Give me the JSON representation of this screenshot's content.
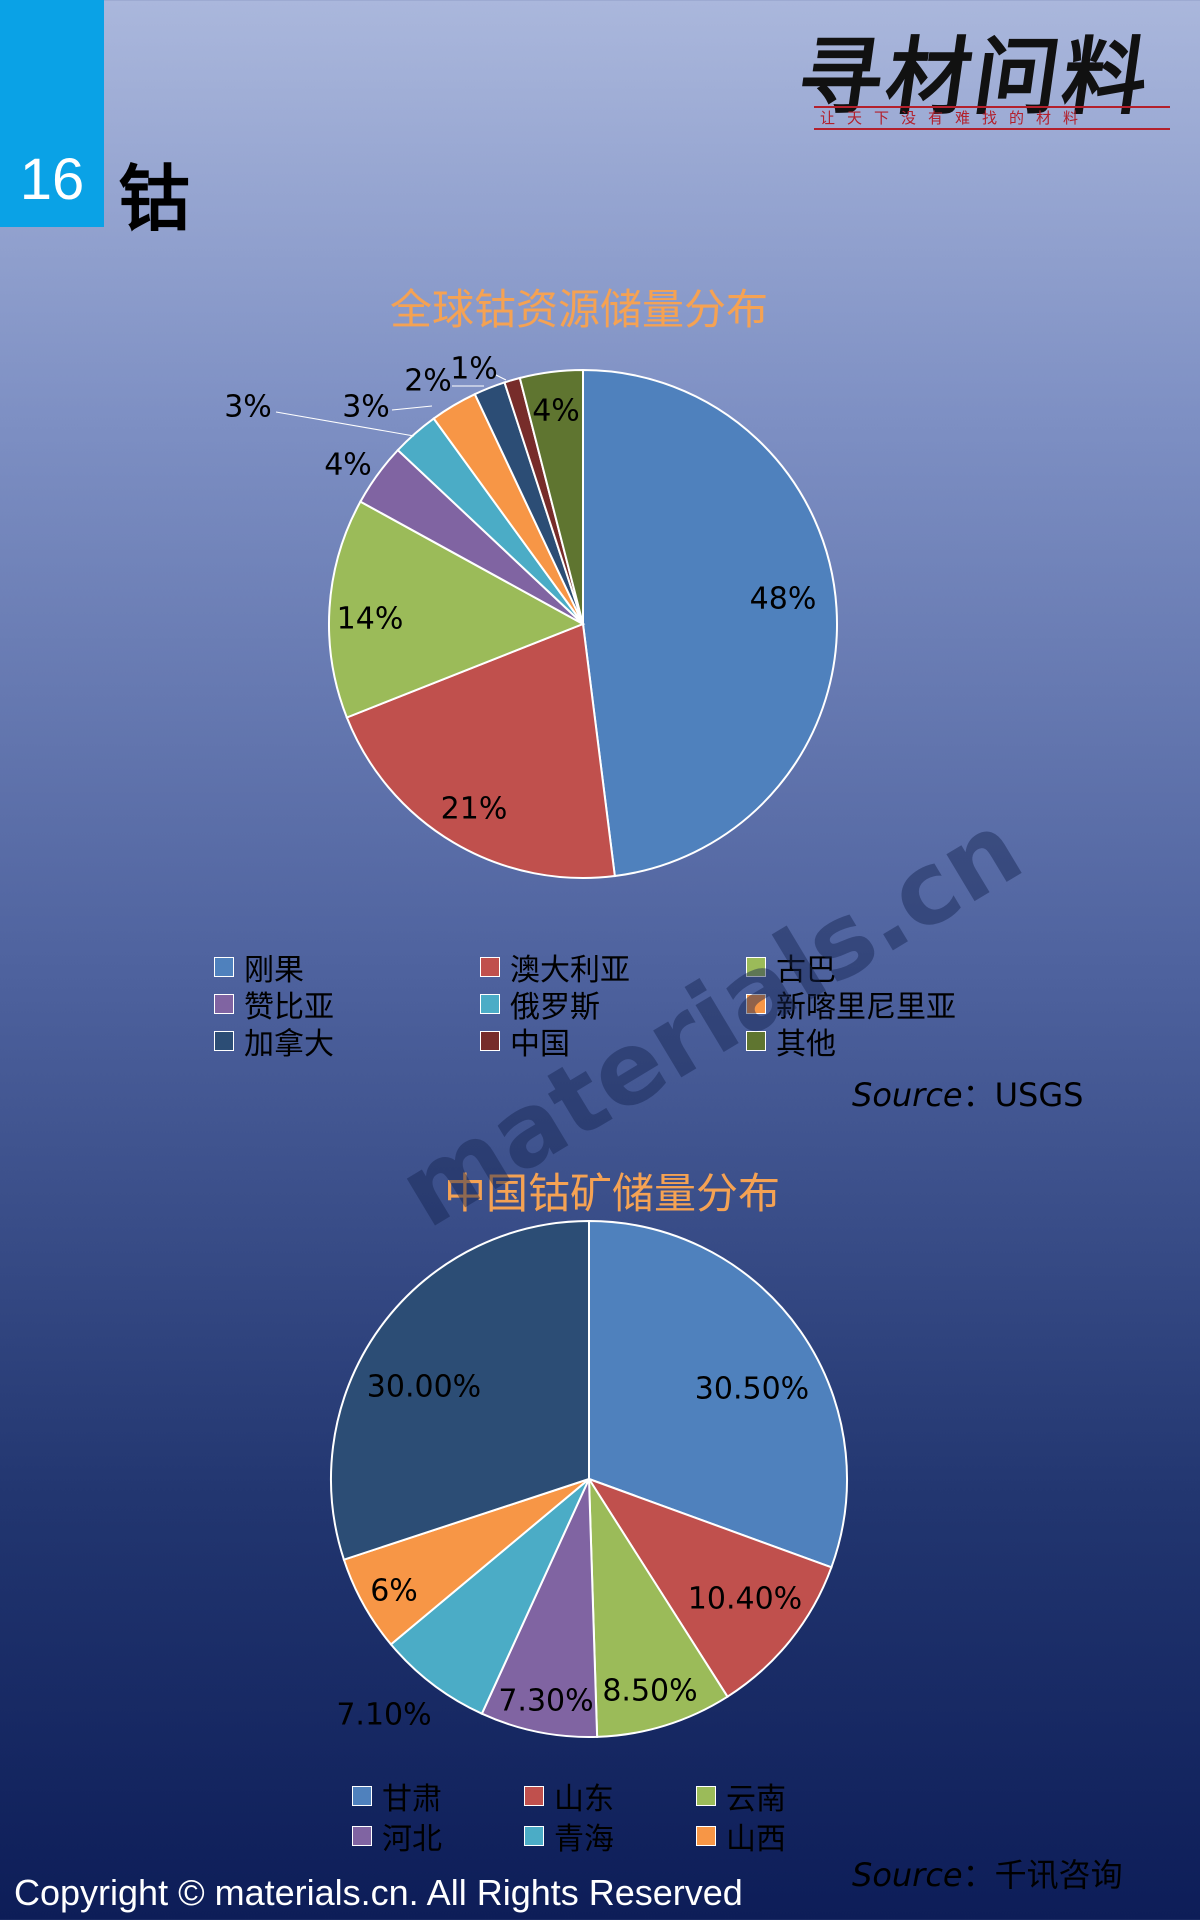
{
  "page": {
    "number": "16",
    "element": "钴",
    "logo": {
      "main": "寻材问料",
      "tagline": "让天下没有难找的材料"
    },
    "watermark": "materials.cn",
    "copyright": "Copyright © materials.cn. All Rights Reserved"
  },
  "chart_data": [
    {
      "type": "pie",
      "title": "全球钴资源储量分布",
      "source_label": "Source",
      "source_value": "：USGS",
      "slices": [
        {
          "name": "刚果",
          "value": 48,
          "label": "48%",
          "color": "#4f81bd"
        },
        {
          "name": "澳大利亚",
          "value": 21,
          "label": "21%",
          "color": "#c0504d"
        },
        {
          "name": "古巴",
          "value": 14,
          "label": "14%",
          "color": "#9bbb59"
        },
        {
          "name": "赞比亚",
          "value": 4,
          "label": "4%",
          "color": "#8064a2"
        },
        {
          "name": "俄罗斯",
          "value": 3,
          "label": "3%",
          "color": "#4bacc6"
        },
        {
          "name": "新喀里尼里亚",
          "value": 3,
          "label": "3%",
          "color": "#f79646"
        },
        {
          "name": "加拿大",
          "value": 2,
          "label": "2%",
          "color": "#2c4d75"
        },
        {
          "name": "中国",
          "value": 1,
          "label": "1%",
          "color": "#772c2a"
        },
        {
          "name": "其他",
          "value": 4,
          "label": "4%",
          "color": "#5f7530"
        }
      ],
      "legend_position": "bottom"
    },
    {
      "type": "pie",
      "title": "中国钴矿储量分布",
      "source_label": "Source",
      "source_value": "：千讯咨询",
      "slices": [
        {
          "name": "甘肃",
          "value": 30.5,
          "label": "30.50%",
          "color": "#4f81bd"
        },
        {
          "name": "山东",
          "value": 10.4,
          "label": "10.40%",
          "color": "#c0504d"
        },
        {
          "name": "云南",
          "value": 8.5,
          "label": "8.50%",
          "color": "#9bbb59"
        },
        {
          "name": "河北",
          "value": 7.3,
          "label": "7.30%",
          "color": "#8064a2"
        },
        {
          "name": "青海",
          "value": 7.1,
          "label": "7.10%",
          "color": "#4bacc6"
        },
        {
          "name": "山西",
          "value": 6,
          "label": "6%",
          "color": "#f79646"
        },
        {
          "name": "",
          "value": 30.0,
          "label": "30.00%",
          "color": "#2c4d75"
        }
      ],
      "legend_position": "bottom"
    }
  ]
}
